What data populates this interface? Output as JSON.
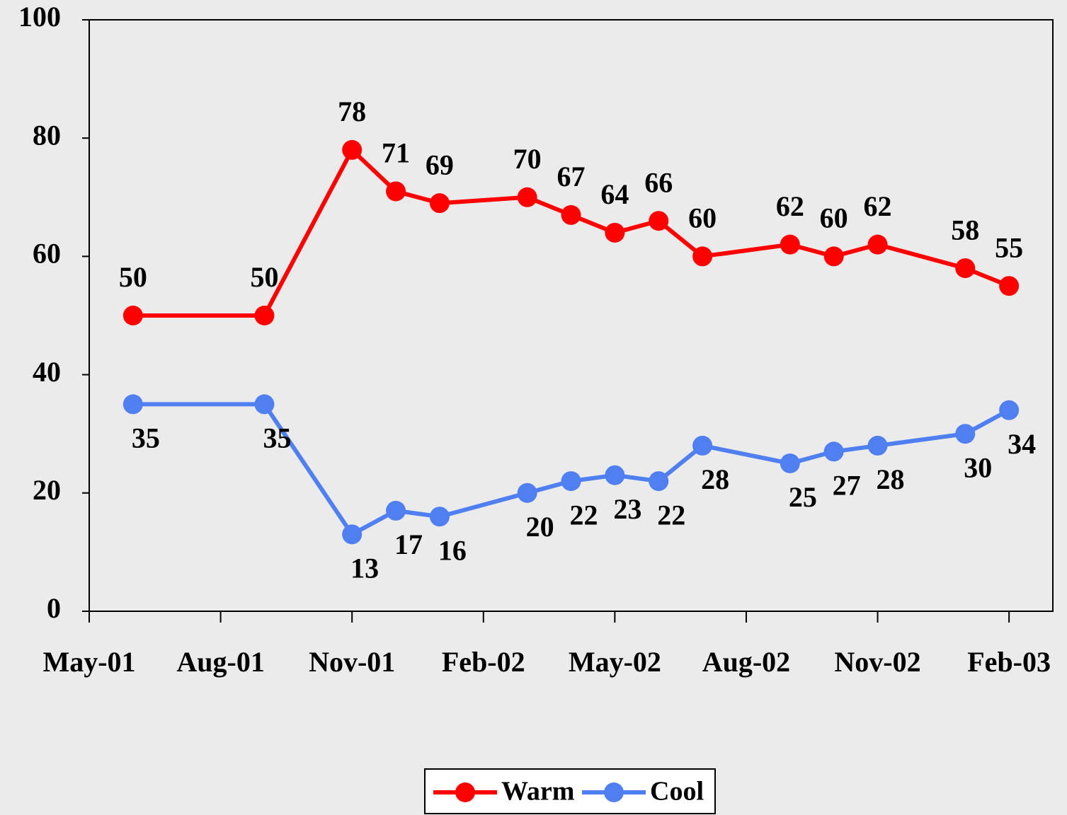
{
  "chart_data": {
    "type": "line",
    "x": [
      1,
      4,
      6,
      7,
      8,
      10,
      11,
      12,
      13,
      14,
      16,
      17,
      18,
      20,
      21
    ],
    "xlim": [
      0,
      22
    ],
    "xticks": [
      {
        "value": 0,
        "label": "May-01"
      },
      {
        "value": 3,
        "label": "Aug-01"
      },
      {
        "value": 6,
        "label": "Nov-01"
      },
      {
        "value": 9,
        "label": "Feb-02"
      },
      {
        "value": 12,
        "label": "May-02"
      },
      {
        "value": 15,
        "label": "Aug-02"
      },
      {
        "value": 18,
        "label": "Nov-02"
      },
      {
        "value": 21,
        "label": "Feb-03"
      }
    ],
    "ylim": [
      0,
      100
    ],
    "yticks": [
      0,
      20,
      40,
      60,
      80,
      100
    ],
    "series": [
      {
        "name": "Warm",
        "color": "#ff0000",
        "values": [
          50,
          50,
          78,
          71,
          69,
          70,
          67,
          64,
          66,
          60,
          62,
          60,
          62,
          58,
          55
        ]
      },
      {
        "name": "Cool",
        "color": "#4f7ff0",
        "values": [
          35,
          35,
          13,
          17,
          16,
          20,
          22,
          23,
          22,
          28,
          25,
          27,
          28,
          30,
          34
        ]
      }
    ],
    "legend": "bottom"
  }
}
